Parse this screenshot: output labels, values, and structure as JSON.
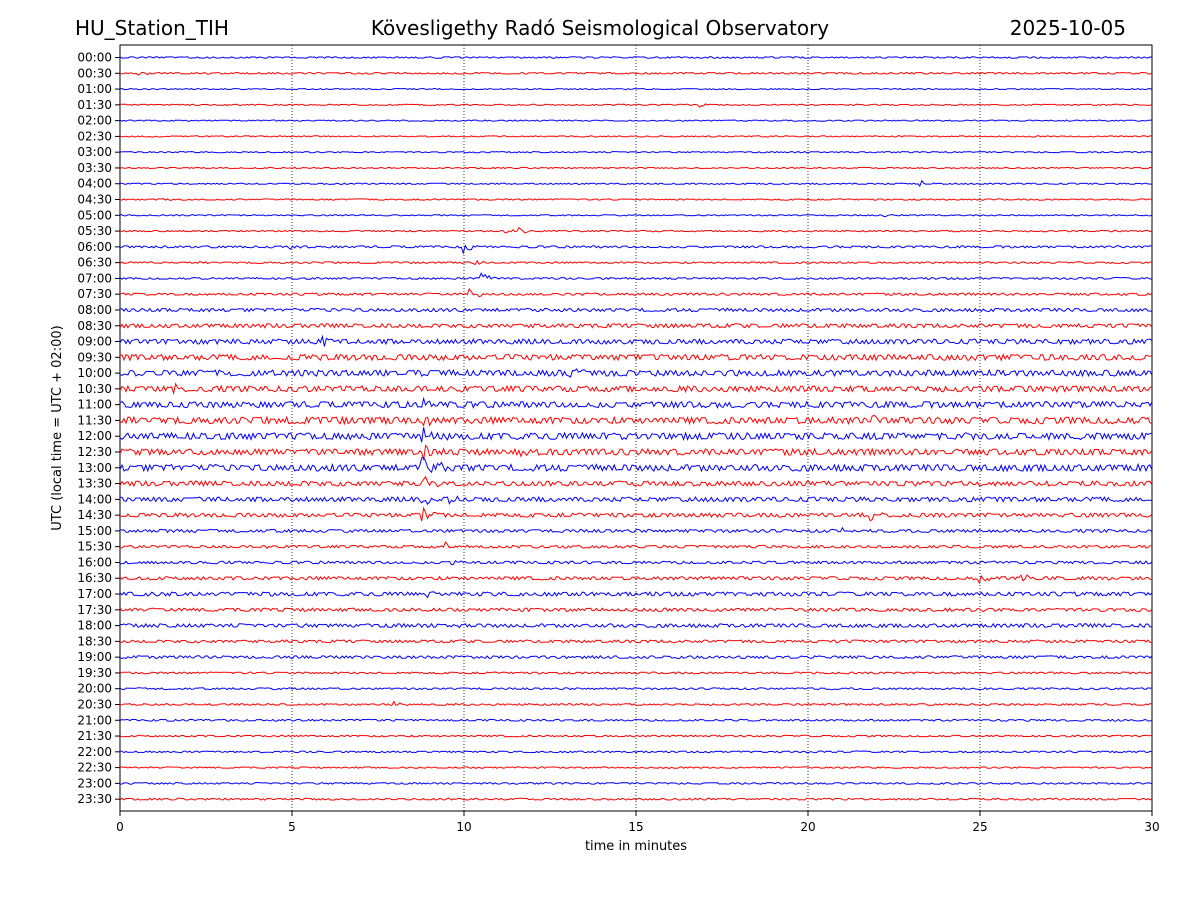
{
  "header": {
    "station": "HU_Station_TIH",
    "observatory": "Kövesligethy Radó Seismological Observatory",
    "date": "2025-10-05"
  },
  "chart_data": {
    "type": "line",
    "title": "Kövesligethy Radó Seismological Observatory",
    "xlabel": "time in minutes",
    "ylabel": "UTC (local time = UTC + 02:00)",
    "xlim": [
      0,
      30
    ],
    "x_ticks": [
      "0",
      "5",
      "10",
      "15",
      "20",
      "25",
      "30"
    ],
    "grid": "vertical dotted at 5-minute ticks",
    "colors": [
      "#0000ff",
      "#ff0000"
    ],
    "rows": [
      {
        "label": "00:00",
        "noise": 0.5,
        "events": []
      },
      {
        "label": "00:30",
        "noise": 0.55,
        "events": [
          {
            "t": 0.5,
            "amp": 2.2
          }
        ]
      },
      {
        "label": "01:00",
        "noise": 0.35,
        "events": []
      },
      {
        "label": "01:30",
        "noise": 0.4,
        "events": [
          {
            "t": 16.8,
            "amp": 2.5
          }
        ]
      },
      {
        "label": "02:00",
        "noise": 0.4,
        "events": []
      },
      {
        "label": "02:30",
        "noise": 0.4,
        "events": []
      },
      {
        "label": "03:00",
        "noise": 0.4,
        "events": []
      },
      {
        "label": "03:30",
        "noise": 0.4,
        "events": [
          {
            "t": 4.9,
            "amp": 1.5
          }
        ]
      },
      {
        "label": "04:00",
        "noise": 0.45,
        "events": [
          {
            "t": 23.2,
            "amp": 5
          }
        ]
      },
      {
        "label": "04:30",
        "noise": 0.45,
        "events": [
          {
            "t": 1.2,
            "amp": 2
          }
        ]
      },
      {
        "label": "05:00",
        "noise": 0.4,
        "events": [
          {
            "t": 22.2,
            "amp": 2
          }
        ]
      },
      {
        "label": "05:30",
        "noise": 0.45,
        "events": [
          {
            "t": 11.6,
            "amp": 4.5
          },
          {
            "t": 11.2,
            "amp": 3
          }
        ]
      },
      {
        "label": "06:00",
        "noise": 0.7,
        "events": [
          {
            "t": 10,
            "amp": 8
          },
          {
            "t": 4.9,
            "amp": 3
          }
        ]
      },
      {
        "label": "06:30",
        "noise": 0.55,
        "events": [
          {
            "t": 10.3,
            "amp": 3
          }
        ]
      },
      {
        "label": "07:00",
        "noise": 0.6,
        "events": [
          {
            "t": 10.5,
            "amp": 6.5
          }
        ]
      },
      {
        "label": "07:30",
        "noise": 0.75,
        "events": [
          {
            "t": 10.2,
            "amp": 6
          }
        ]
      },
      {
        "label": "08:00",
        "noise": 1.1,
        "events": []
      },
      {
        "label": "08:30",
        "noise": 1.3,
        "events": []
      },
      {
        "label": "09:00",
        "noise": 1.6,
        "events": [
          {
            "t": 5.9,
            "amp": 7
          }
        ]
      },
      {
        "label": "09:30",
        "noise": 1.9,
        "events": []
      },
      {
        "label": "10:00",
        "noise": 2.0,
        "events": [
          {
            "t": 13.1,
            "amp": 4
          }
        ]
      },
      {
        "label": "10:30",
        "noise": 1.9,
        "events": [
          {
            "t": 1.6,
            "amp": 4
          },
          {
            "t": 9.6,
            "amp": 5
          }
        ]
      },
      {
        "label": "11:00",
        "noise": 2.0,
        "events": [
          {
            "t": 8.8,
            "amp": 5
          }
        ]
      },
      {
        "label": "11:30",
        "noise": 2.2,
        "events": [
          {
            "t": 8.8,
            "amp": 8
          },
          {
            "t": 21.8,
            "amp": 4
          }
        ]
      },
      {
        "label": "12:00",
        "noise": 2.2,
        "events": [
          {
            "t": 8.8,
            "amp": 12
          }
        ]
      },
      {
        "label": "12:30",
        "noise": 2.0,
        "events": [
          {
            "t": 8.8,
            "amp": 12
          },
          {
            "t": 11.7,
            "amp": 7
          }
        ]
      },
      {
        "label": "13:00",
        "noise": 2.2,
        "events": [
          {
            "t": 8.8,
            "amp": 16
          },
          {
            "t": 9.3,
            "amp": 9
          }
        ]
      },
      {
        "label": "13:30",
        "noise": 1.6,
        "events": [
          {
            "t": 8.8,
            "amp": 10
          }
        ]
      },
      {
        "label": "14:00",
        "noise": 1.5,
        "events": [
          {
            "t": 8.8,
            "amp": 8
          },
          {
            "t": 9.6,
            "amp": 4
          }
        ]
      },
      {
        "label": "14:30",
        "noise": 1.3,
        "events": [
          {
            "t": 8.8,
            "amp": 8
          },
          {
            "t": 21.8,
            "amp": 6
          }
        ]
      },
      {
        "label": "15:00",
        "noise": 1.0,
        "events": [
          {
            "t": 21.0,
            "amp": 3
          }
        ]
      },
      {
        "label": "15:30",
        "noise": 0.9,
        "events": [
          {
            "t": 9.5,
            "amp": 5
          },
          {
            "t": 4.2,
            "amp": 2
          }
        ]
      },
      {
        "label": "16:00",
        "noise": 0.9,
        "events": [
          {
            "t": 9.6,
            "amp": 4
          }
        ]
      },
      {
        "label": "16:30",
        "noise": 1.1,
        "events": [
          {
            "t": 25.0,
            "amp": 6
          },
          {
            "t": 26.2,
            "amp": 5
          }
        ]
      },
      {
        "label": "17:00",
        "noise": 1.3,
        "events": [
          {
            "t": 8.8,
            "amp": 5
          }
        ]
      },
      {
        "label": "17:30",
        "noise": 1.1,
        "events": []
      },
      {
        "label": "18:00",
        "noise": 1.2,
        "events": [
          {
            "t": 9.6,
            "amp": 4
          }
        ]
      },
      {
        "label": "18:30",
        "noise": 0.9,
        "events": []
      },
      {
        "label": "19:00",
        "noise": 0.9,
        "events": []
      },
      {
        "label": "19:30",
        "noise": 0.6,
        "events": []
      },
      {
        "label": "20:00",
        "noise": 0.6,
        "events": []
      },
      {
        "label": "20:30",
        "noise": 0.6,
        "events": [
          {
            "t": 8.0,
            "amp": 2.5
          }
        ]
      },
      {
        "label": "21:00",
        "noise": 0.6,
        "events": []
      },
      {
        "label": "21:30",
        "noise": 0.55,
        "events": []
      },
      {
        "label": "22:00",
        "noise": 0.55,
        "events": []
      },
      {
        "label": "22:30",
        "noise": 0.5,
        "events": []
      },
      {
        "label": "23:00",
        "noise": 0.55,
        "events": []
      },
      {
        "label": "23:30",
        "noise": 0.6,
        "events": []
      }
    ]
  }
}
